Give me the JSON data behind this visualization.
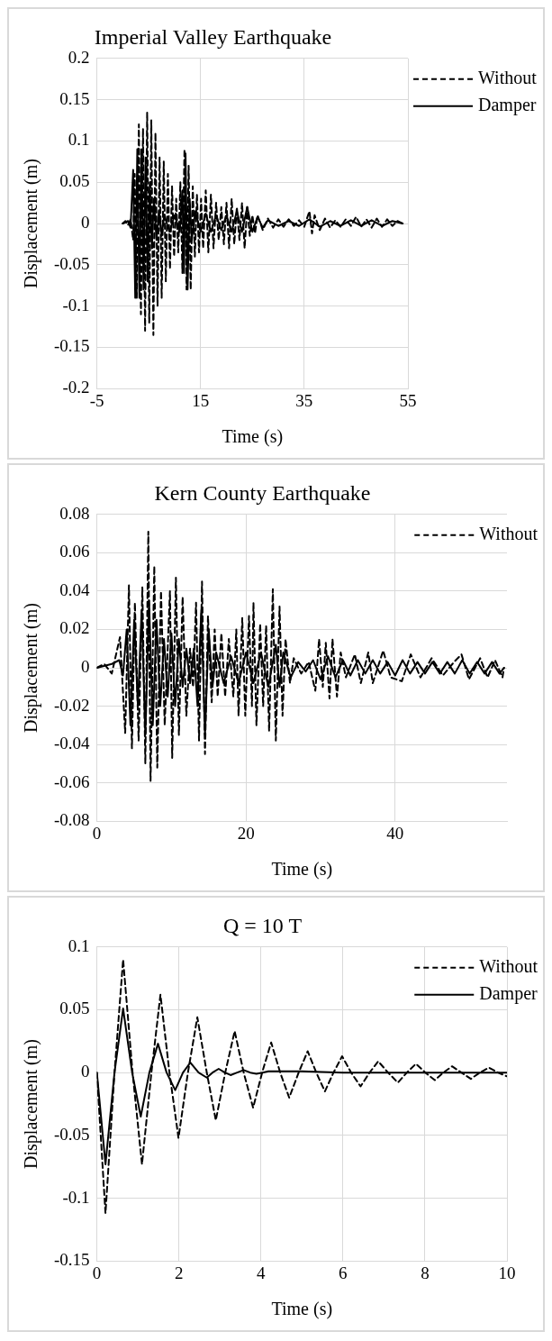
{
  "chart_data": [
    {
      "type": "line",
      "title": "Imperial Valley Earthquake",
      "xlabel": "Time (s)",
      "ylabel": "Displacement (m)",
      "xlim": [
        -5,
        55
      ],
      "xticks": [
        -5,
        15,
        35,
        55
      ],
      "ylim": [
        -0.2,
        0.2
      ],
      "yticks": [
        -0.2,
        -0.15,
        -0.1,
        -0.05,
        0,
        0.05,
        0.1,
        0.15,
        0.2
      ],
      "grid": true,
      "legend": "right",
      "marker": "none",
      "series": [
        {
          "name": "Without",
          "color": "#000000",
          "line_style": "dashed",
          "x": [
            0,
            0.5,
            1,
            1.5,
            2,
            2.3,
            2.7,
            3.1,
            3.5,
            3.9,
            4.3,
            4.7,
            5.1,
            5.5,
            5.9,
            6.3,
            6.7,
            7.1,
            7.5,
            7.9,
            8.3,
            8.7,
            9.1,
            9.5,
            9.9,
            10.3,
            10.7,
            11.1,
            11.5,
            11.9,
            12.3,
            12.7,
            13.1,
            13.5,
            13.9,
            14.3,
            14.7,
            15.1,
            15.5,
            16,
            16.5,
            17,
            17.5,
            18,
            18.5,
            19,
            19.5,
            20,
            20.5,
            21,
            21.5,
            22,
            22.5,
            23,
            23.5,
            24,
            24.5,
            25,
            25.5,
            26,
            27,
            28,
            29,
            30,
            31,
            32,
            33,
            34,
            35,
            36,
            36.5,
            37,
            38,
            39,
            40,
            41,
            42,
            43,
            44,
            45,
            46,
            47,
            48,
            49,
            50,
            51,
            52,
            53,
            54
          ],
          "values": [
            0,
            0.003,
            -0.002,
            0.005,
            -0.02,
            0.06,
            -0.09,
            0.12,
            -0.11,
            0.115,
            -0.13,
            0.135,
            -0.12,
            0.125,
            -0.135,
            0.11,
            -0.1,
            0.08,
            -0.09,
            0.075,
            -0.07,
            0.06,
            -0.055,
            0.045,
            -0.04,
            0.03,
            -0.035,
            0.05,
            -0.06,
            0.09,
            -0.08,
            0.07,
            -0.08,
            0.045,
            -0.04,
            0.035,
            -0.035,
            0.03,
            -0.03,
            0.04,
            -0.035,
            0.035,
            -0.03,
            0.025,
            -0.02,
            0.02,
            -0.025,
            0.025,
            -0.03,
            0.03,
            -0.025,
            0.02,
            -0.02,
            0.025,
            -0.03,
            0.02,
            -0.015,
            0.01,
            -0.012,
            0.01,
            -0.008,
            0.006,
            -0.005,
            0.005,
            -0.004,
            0.005,
            -0.003,
            0.004,
            -0.004,
            0.015,
            -0.012,
            0.01,
            -0.008,
            0.006,
            -0.005,
            0.004,
            -0.004,
            0.005,
            -0.003,
            0.008,
            -0.004,
            0.005,
            -0.005,
            0.006,
            -0.004,
            0.005,
            -0.003,
            0.003,
            0
          ]
        },
        {
          "name": "Damper",
          "color": "#000000",
          "line_style": "solid",
          "x": [
            0,
            1,
            1.5,
            2,
            2.4,
            2.8,
            3.2,
            3.6,
            4,
            4.4,
            4.8,
            5.2,
            5.6,
            6,
            6.5,
            7,
            7.5,
            8,
            9,
            10,
            11,
            11.5,
            11.8,
            12.1,
            12.5,
            12.9,
            13.3,
            14,
            15,
            16,
            17,
            18,
            19,
            20,
            21,
            22,
            23,
            24,
            25,
            26,
            27,
            28,
            30,
            32,
            34,
            36,
            38,
            40,
            42,
            44,
            46,
            48,
            50,
            52,
            54
          ],
          "values": [
            0,
            0.003,
            -0.005,
            0.065,
            -0.09,
            0.09,
            -0.09,
            0.09,
            -0.08,
            0.08,
            -0.07,
            0.05,
            -0.03,
            0.03,
            -0.02,
            0.015,
            -0.015,
            0.01,
            -0.01,
            0.01,
            -0.01,
            0.04,
            -0.06,
            0.085,
            -0.08,
            0.03,
            -0.02,
            0.015,
            -0.01,
            0.012,
            -0.01,
            0.01,
            -0.008,
            0.01,
            -0.01,
            0.015,
            -0.01,
            0.02,
            -0.01,
            0.008,
            -0.005,
            0.004,
            -0.003,
            0.003,
            -0.003,
            0.005,
            -0.004,
            0.003,
            -0.003,
            0.004,
            -0.003,
            0.004,
            -0.003,
            0.003,
            0
          ]
        }
      ]
    },
    {
      "type": "line",
      "title": "Kern County Earthquake",
      "xlabel": "Time (s)",
      "ylabel": "Displacement (m)",
      "xlim": [
        0,
        55
      ],
      "xticks": [
        0,
        20,
        40
      ],
      "ylim": [
        -0.08,
        0.08
      ],
      "yticks": [
        -0.08,
        -0.06,
        -0.04,
        -0.02,
        0,
        0.02,
        0.04,
        0.06,
        0.08
      ],
      "grid": true,
      "legend": "top right",
      "marker": "none",
      "series": [
        {
          "name": "Without",
          "color": "#000000",
          "line_style": "dashed",
          "x": [
            0,
            1,
            2,
            3.1,
            3.8,
            4.3,
            4.7,
            5.1,
            5.6,
            6.1,
            6.5,
            6.9,
            7.2,
            7.7,
            8.1,
            8.6,
            9.1,
            9.8,
            10.1,
            10.6,
            11,
            11.5,
            12,
            12.5,
            12.9,
            13.3,
            13.7,
            14.1,
            14.5,
            14.9,
            15.4,
            15.8,
            16.2,
            16.7,
            17.2,
            17.7,
            18.3,
            18.7,
            19,
            19.5,
            19.9,
            20.4,
            20.8,
            21,
            21.4,
            21.9,
            22.3,
            22.7,
            23.1,
            23.6,
            24,
            24.5,
            24.9,
            25.3,
            25.9,
            26.4,
            27.4,
            28.4,
            29.3,
            29.8,
            30.3,
            30.7,
            31.2,
            31.6,
            32.2,
            32.7,
            33.4,
            34.6,
            35.4,
            36.4,
            37,
            38.4,
            39.4,
            40.9,
            42.1,
            43.4,
            44.9,
            46.4,
            47.9,
            48.9,
            49.9,
            51.4,
            52.4,
            53.4,
            54.4,
            54.6
          ],
          "values": [
            0,
            0.002,
            -0.003,
            0.016,
            -0.034,
            0.043,
            -0.042,
            0.034,
            -0.038,
            0.042,
            -0.05,
            0.071,
            -0.059,
            0.053,
            -0.052,
            0.04,
            -0.03,
            0.04,
            -0.047,
            0.047,
            -0.035,
            0.037,
            -0.025,
            0.01,
            -0.01,
            0.034,
            -0.038,
            0.045,
            -0.045,
            0.027,
            -0.018,
            0.02,
            -0.015,
            0.018,
            -0.015,
            0.015,
            -0.015,
            0.02,
            -0.025,
            0.026,
            -0.025,
            0.027,
            -0.02,
            0.034,
            -0.03,
            0.023,
            -0.02,
            0.022,
            -0.033,
            0.041,
            -0.038,
            0.032,
            -0.025,
            0.015,
            -0.008,
            0.005,
            -0.003,
            0.003,
            -0.012,
            0.015,
            -0.01,
            0.013,
            -0.016,
            0.015,
            -0.015,
            0.008,
            -0.005,
            0.007,
            -0.008,
            0.008,
            -0.008,
            0.009,
            -0.005,
            -0.007,
            0.007,
            -0.005,
            0.005,
            -0.004,
            0.003,
            0.007,
            -0.006,
            0.005,
            -0.005,
            0.004,
            -0.005,
            0
          ]
        },
        {
          "color": "#000000",
          "line_style": "solid",
          "x": [
            0,
            2,
            3,
            3.5,
            4,
            4.5,
            5,
            5.5,
            6,
            6.5,
            7,
            7.5,
            8,
            8.5,
            9,
            9.5,
            10,
            10.5,
            11,
            11.5,
            12,
            12.5,
            13,
            13.5,
            14,
            14.5,
            15,
            15.5,
            16,
            17,
            18,
            19,
            20,
            21,
            22,
            23,
            24,
            24.5,
            25,
            26,
            27,
            28,
            29,
            30,
            31,
            32,
            33,
            34,
            35,
            36,
            37,
            38,
            39,
            40,
            41,
            42,
            43,
            44,
            45,
            46,
            47,
            48,
            49,
            50,
            51,
            52,
            53,
            54,
            54.6
          ],
          "values": [
            0,
            0.002,
            0.004,
            -0.004,
            0.02,
            -0.03,
            0.025,
            -0.02,
            0.03,
            -0.035,
            0.035,
            -0.03,
            0.025,
            -0.02,
            0.015,
            -0.015,
            0.018,
            -0.02,
            0.015,
            -0.01,
            0.01,
            -0.008,
            0.01,
            -0.02,
            0.03,
            -0.035,
            0.02,
            -0.01,
            0.008,
            -0.008,
            0.006,
            -0.008,
            0.008,
            -0.008,
            0.008,
            -0.01,
            0.012,
            -0.01,
            0.008,
            -0.005,
            0.003,
            -0.002,
            0.004,
            -0.006,
            0.006,
            -0.005,
            0.004,
            -0.004,
            0.004,
            -0.003,
            0.004,
            -0.003,
            0.003,
            -0.004,
            0.004,
            -0.003,
            0.003,
            -0.003,
            0.003,
            -0.003,
            0.003,
            -0.003,
            0.004,
            -0.003,
            0.003,
            -0.003,
            0.003,
            -0.003,
            0
          ]
        }
      ]
    },
    {
      "type": "line",
      "title": "Q = 10 T",
      "xlabel": "Time (s)",
      "ylabel": "Displacement (m)",
      "xlim": [
        0,
        10
      ],
      "xticks": [
        0,
        2,
        4,
        6,
        8,
        10
      ],
      "ylim": [
        -0.15,
        0.1
      ],
      "yticks": [
        -0.15,
        -0.1,
        -0.05,
        0,
        0.05,
        0.1
      ],
      "grid": true,
      "legend": "top right",
      "marker": "none",
      "series": [
        {
          "name": "Without",
          "color": "#000000",
          "line_style": "dashed",
          "x": [
            0,
            0.21,
            0.43,
            0.64,
            0.87,
            1.1,
            1.33,
            1.55,
            1.77,
            1.99,
            2.22,
            2.45,
            2.68,
            2.9,
            3.13,
            3.36,
            3.58,
            3.81,
            4.03,
            4.25,
            4.47,
            4.69,
            4.92,
            5.14,
            5.35,
            5.56,
            5.77,
            5.98,
            6.2,
            6.43,
            6.65,
            6.86,
            7.1,
            7.34,
            7.56,
            7.78,
            8.01,
            8.24,
            8.45,
            8.66,
            8.89,
            9.12,
            9.34,
            9.56,
            9.78,
            10
          ],
          "values": [
            0,
            -0.112,
            0,
            0.09,
            0,
            -0.073,
            0,
            0.062,
            0,
            -0.052,
            0,
            0.044,
            0,
            -0.038,
            0,
            0.033,
            0,
            -0.028,
            0,
            0.024,
            0,
            -0.02,
            0,
            0.017,
            0,
            -0.015,
            0,
            0.013,
            0,
            -0.011,
            0,
            0.009,
            0,
            -0.008,
            0,
            0.007,
            0,
            -0.006,
            0,
            0.005,
            0,
            -0.005,
            0,
            0.004,
            0,
            -0.003
          ]
        },
        {
          "name": "Damper",
          "color": "#000000",
          "line_style": "solid",
          "x": [
            0,
            0.21,
            0.43,
            0.64,
            0.86,
            1.07,
            1.28,
            1.49,
            1.7,
            1.91,
            2.1,
            2.28,
            2.48,
            2.68,
            2.82,
            2.97,
            3.12,
            3.26,
            3.42,
            3.58,
            3.74,
            3.89,
            4.04,
            4.18,
            5,
            6,
            10
          ],
          "values": [
            0,
            -0.073,
            0,
            0.051,
            0,
            -0.035,
            0,
            0.023,
            0,
            -0.014,
            0,
            0.008,
            0,
            -0.004,
            0,
            0.003,
            0,
            -0.002,
            0,
            0.002,
            0,
            -0.001,
            0,
            0.001,
            0.001,
            0,
            0
          ]
        }
      ]
    }
  ]
}
